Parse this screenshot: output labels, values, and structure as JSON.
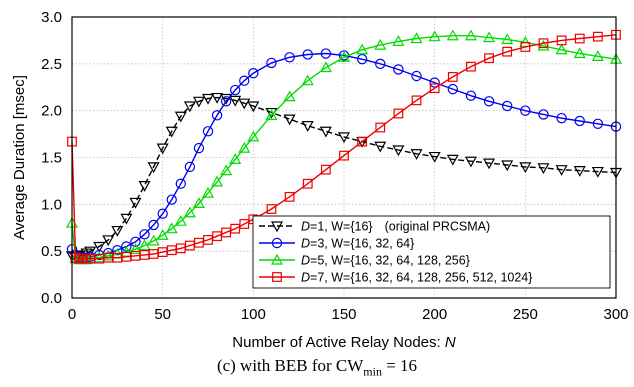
{
  "chart_data": {
    "type": "line",
    "title": "",
    "xlabel": "Number of Active Relay Nodes:",
    "xlabel_var": "N",
    "ylabel": "Average Duration [msec]",
    "xlim": [
      0,
      300
    ],
    "ylim": [
      0,
      3.0
    ],
    "xticks": [
      0,
      50,
      100,
      150,
      200,
      250,
      300
    ],
    "yticks": [
      "0.0",
      "0.5",
      "1.0",
      "1.5",
      "2.0",
      "2.5",
      "3.0"
    ],
    "grid": true,
    "legend_position": "bottom-right",
    "x": [
      0,
      2,
      4,
      6,
      8,
      10,
      15,
      20,
      25,
      30,
      35,
      40,
      45,
      50,
      55,
      60,
      65,
      70,
      75,
      80,
      85,
      90,
      95,
      100,
      110,
      120,
      130,
      140,
      150,
      160,
      170,
      180,
      190,
      200,
      210,
      220,
      230,
      240,
      250,
      260,
      270,
      280,
      290,
      300
    ],
    "series": [
      {
        "name_prefix": "D",
        "name_value": "=1, W={16}",
        "name_note": "(original PRCSMA)",
        "color": "#000000",
        "marker": "triangle-down",
        "dash": true,
        "values": [
          0.45,
          0.44,
          0.45,
          0.46,
          0.48,
          0.5,
          0.55,
          0.62,
          0.72,
          0.85,
          1.02,
          1.2,
          1.4,
          1.6,
          1.78,
          1.94,
          2.05,
          2.1,
          2.13,
          2.14,
          2.13,
          2.11,
          2.08,
          2.05,
          1.98,
          1.91,
          1.84,
          1.78,
          1.72,
          1.67,
          1.62,
          1.58,
          1.54,
          1.51,
          1.48,
          1.46,
          1.44,
          1.42,
          1.4,
          1.39,
          1.37,
          1.36,
          1.35,
          1.34
        ]
      },
      {
        "name_prefix": "D",
        "name_value": "=3, W={16, 32, 64}",
        "name_note": "",
        "color": "#0000ee",
        "marker": "circle",
        "dash": false,
        "values": [
          0.52,
          0.46,
          0.44,
          0.43,
          0.43,
          0.44,
          0.46,
          0.48,
          0.51,
          0.55,
          0.6,
          0.68,
          0.78,
          0.9,
          1.05,
          1.22,
          1.4,
          1.6,
          1.78,
          1.95,
          2.1,
          2.22,
          2.32,
          2.4,
          2.51,
          2.57,
          2.6,
          2.61,
          2.59,
          2.55,
          2.5,
          2.44,
          2.37,
          2.3,
          2.23,
          2.16,
          2.1,
          2.05,
          2.0,
          1.96,
          1.92,
          1.89,
          1.86,
          1.83
        ]
      },
      {
        "name_prefix": "D",
        "name_value": "=5, W={16, 32, 64, 128, 256}",
        "name_note": "",
        "color": "#00dd00",
        "marker": "triangle-up",
        "dash": false,
        "values": [
          0.8,
          0.42,
          0.41,
          0.41,
          0.41,
          0.42,
          0.43,
          0.45,
          0.47,
          0.49,
          0.52,
          0.56,
          0.61,
          0.67,
          0.74,
          0.82,
          0.91,
          1.01,
          1.12,
          1.24,
          1.36,
          1.48,
          1.6,
          1.72,
          1.95,
          2.15,
          2.32,
          2.46,
          2.57,
          2.65,
          2.7,
          2.74,
          2.77,
          2.79,
          2.8,
          2.8,
          2.78,
          2.76,
          2.73,
          2.69,
          2.65,
          2.61,
          2.58,
          2.55
        ]
      },
      {
        "name_prefix": "D",
        "name_value": "=7, W={16, 32, 64, 128, 256, 512, 1024}",
        "name_note": "",
        "color": "#ee0000",
        "marker": "square",
        "dash": false,
        "values": [
          1.67,
          0.43,
          0.42,
          0.42,
          0.42,
          0.42,
          0.42,
          0.43,
          0.43,
          0.44,
          0.45,
          0.46,
          0.47,
          0.49,
          0.51,
          0.53,
          0.56,
          0.59,
          0.62,
          0.66,
          0.7,
          0.74,
          0.79,
          0.84,
          0.95,
          1.08,
          1.22,
          1.37,
          1.52,
          1.67,
          1.82,
          1.97,
          2.11,
          2.24,
          2.36,
          2.47,
          2.56,
          2.63,
          2.68,
          2.72,
          2.75,
          2.77,
          2.79,
          2.81
        ]
      }
    ]
  },
  "caption": "(c) with BEB for CW",
  "caption_sub": "min",
  "caption_tail": " = 16"
}
